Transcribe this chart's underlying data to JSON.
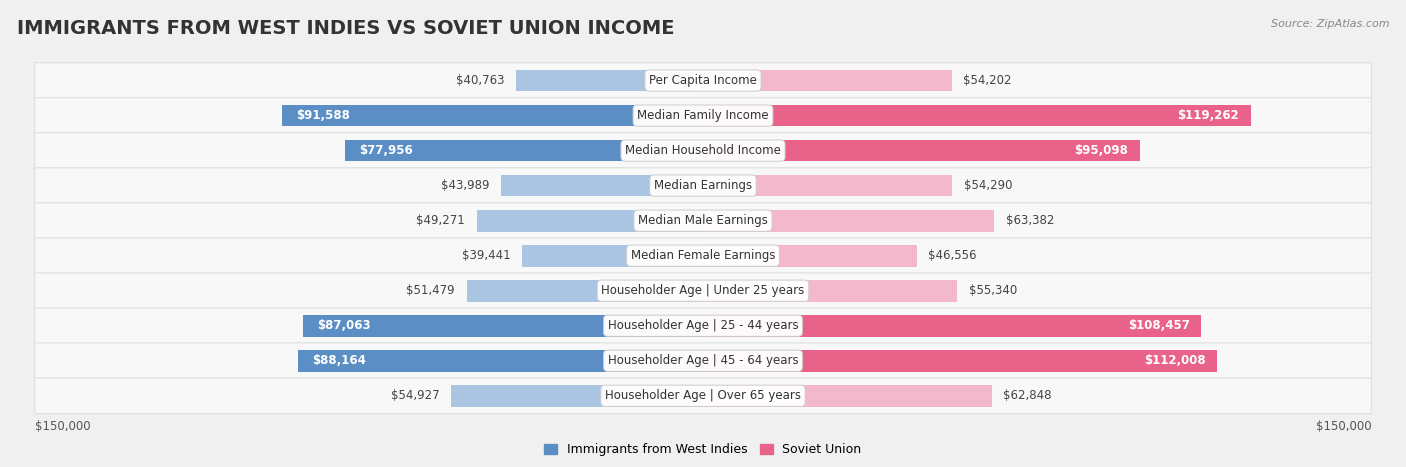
{
  "title": "IMMIGRANTS FROM WEST INDIES VS SOVIET UNION INCOME",
  "source": "Source: ZipAtlas.com",
  "categories": [
    "Per Capita Income",
    "Median Family Income",
    "Median Household Income",
    "Median Earnings",
    "Median Male Earnings",
    "Median Female Earnings",
    "Householder Age | Under 25 years",
    "Householder Age | 25 - 44 years",
    "Householder Age | 45 - 64 years",
    "Householder Age | Over 65 years"
  ],
  "west_indies": [
    40763,
    91588,
    77956,
    43989,
    49271,
    39441,
    51479,
    87063,
    88164,
    54927
  ],
  "soviet_union": [
    54202,
    119262,
    95098,
    54290,
    63382,
    46556,
    55340,
    108457,
    112008,
    62848
  ],
  "west_indies_labels": [
    "$40,763",
    "$91,588",
    "$77,956",
    "$43,989",
    "$49,271",
    "$39,441",
    "$51,479",
    "$87,063",
    "$88,164",
    "$54,927"
  ],
  "soviet_union_labels": [
    "$54,202",
    "$119,262",
    "$95,098",
    "$54,290",
    "$63,382",
    "$46,556",
    "$55,340",
    "$108,457",
    "$112,008",
    "$62,848"
  ],
  "wi_color_light": "#aac5e2",
  "wi_color_dark": "#5b8ec4",
  "su_color_light": "#f4b8cc",
  "su_color_dark": "#e8628a",
  "wi_dark_indices": [
    1,
    2,
    7,
    8
  ],
  "su_dark_indices": [
    1,
    2,
    7,
    8
  ],
  "max_value": 150000,
  "bg_color": "#f0f0f0",
  "row_color": "#f8f8f8",
  "row_border_color": "#dedede",
  "axis_label_left": "$150,000",
  "axis_label_right": "$150,000",
  "legend_west_indies": "Immigrants from West Indies",
  "legend_soviet_union": "Soviet Union",
  "title_fontsize": 14,
  "label_fontsize": 8.5,
  "value_fontsize": 8.5
}
